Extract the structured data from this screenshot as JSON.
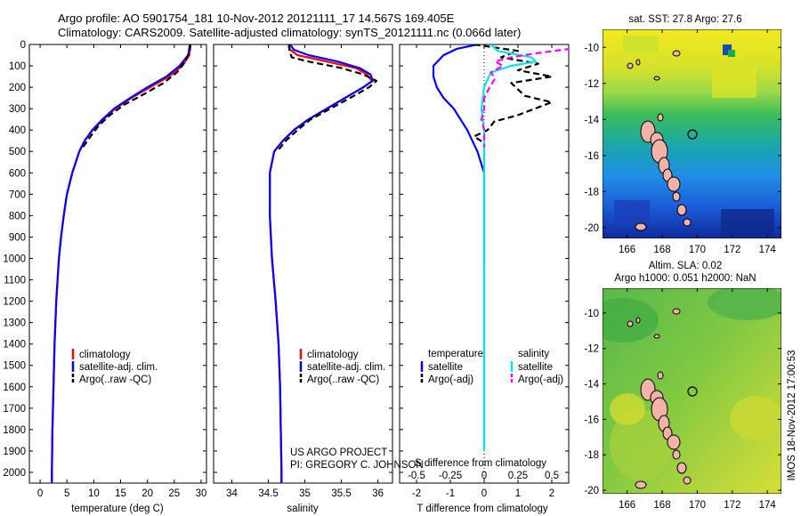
{
  "header": {
    "line1": "Argo profile: AO 5901754_181 10-Nov-2012 20121111_17 14.567S 169.405E",
    "line2": "Climatology: CARS2009. Satellite-adjusted climatology: synTS_20121111.nc (0.066d later)"
  },
  "colors": {
    "climatology": "#ff0000",
    "satellite": "#0000ff",
    "argo": "#000000",
    "sal_satellite": "#00e5e5",
    "sal_argo": "#ff00ff"
  },
  "project": {
    "line1": "US ARGO PROJECT",
    "line2": "PI: GREGORY C. JOHNSON"
  },
  "depth_ticks": [
    "0",
    "100",
    "200",
    "300",
    "400",
    "500",
    "600",
    "700",
    "800",
    "900",
    "1000",
    "1100",
    "1200",
    "1300",
    "1400",
    "1500",
    "1600",
    "1700",
    "1800",
    "1900",
    "2000"
  ],
  "legend_clim": {
    "climatology": "climatology",
    "satellite": "satellite-adj. clim.",
    "argo": "Argo(..raw -QC)"
  },
  "legend_diff": {
    "temp_header": "temperature",
    "sal_header": "salinity",
    "t_satellite": "satellite",
    "t_argo": "Argo(-adj)",
    "s_satellite": "satellite",
    "s_argo": "Argo(-adj)"
  },
  "map1": {
    "title": "sat. SST: 27.8 Argo: 27.6",
    "xticks": [
      "166",
      "168",
      "170",
      "172",
      "174"
    ],
    "yticks": [
      "-10",
      "-12",
      "-14",
      "-16",
      "-18",
      "-20"
    ]
  },
  "map2": {
    "title1": "Altim. SLA: 0.02",
    "title2": "Argo h1000: 0.051 h2000: NaN",
    "xticks": [
      "166",
      "168",
      "170",
      "172",
      "174"
    ],
    "yticks": [
      "-10",
      "-12",
      "-14",
      "-16",
      "-18",
      "-20"
    ]
  },
  "side_label": "IMOS 18-Nov-2012 17:00:53",
  "chart_data": [
    {
      "type": "line",
      "xlabel": "temperature (deg C)",
      "ylabel": "",
      "xlim": [
        -2,
        31
      ],
      "ylim": [
        2050,
        0
      ],
      "xticks": [
        "0",
        "5",
        "10",
        "15",
        "20",
        "25",
        "30"
      ],
      "series": [
        {
          "name": "climatology",
          "depth": [
            0,
            50,
            100,
            150,
            200,
            250,
            300,
            350,
            400,
            450,
            500,
            600,
            700,
            800,
            900,
            1000,
            1200,
            1400,
            1600,
            1800,
            2000,
            2050
          ],
          "values": [
            28.0,
            27.8,
            26.5,
            24.0,
            20.5,
            17.0,
            14.0,
            11.8,
            9.8,
            8.3,
            7.3,
            6.0,
            5.0,
            4.4,
            3.9,
            3.5,
            3.0,
            2.7,
            2.5,
            2.3,
            2.2,
            2.2
          ]
        },
        {
          "name": "satellite-adj. clim.",
          "depth": [
            0,
            50,
            100,
            150,
            200,
            250,
            300,
            350,
            400,
            450,
            500,
            600,
            700,
            800,
            900,
            1000,
            1200,
            1400,
            1600,
            1800,
            2000,
            2050
          ],
          "values": [
            27.9,
            27.6,
            26.0,
            23.5,
            20.0,
            16.8,
            13.8,
            11.6,
            9.7,
            8.3,
            7.3,
            6.0,
            5.0,
            4.4,
            3.9,
            3.5,
            3.0,
            2.7,
            2.5,
            2.3,
            2.2,
            2.2
          ]
        },
        {
          "name": "Argo(..raw -QC)",
          "depth": [
            0,
            30,
            80,
            130,
            180,
            230,
            280,
            330,
            380,
            430,
            480
          ],
          "values": [
            28.0,
            27.9,
            27.0,
            25.5,
            23.0,
            19.5,
            15.8,
            13.0,
            10.9,
            9.4,
            8.0
          ]
        }
      ]
    },
    {
      "type": "line",
      "xlabel": "salinity",
      "ylabel": "",
      "xlim": [
        33.75,
        36.2
      ],
      "ylim": [
        2050,
        0
      ],
      "xticks": [
        "34",
        "34.5",
        "35",
        "35.5",
        "36"
      ],
      "series": [
        {
          "name": "climatology",
          "depth": [
            0,
            25,
            50,
            80,
            110,
            140,
            170,
            200,
            250,
            300,
            350,
            400,
            450,
            500,
            600,
            800,
            1000,
            1200,
            1400,
            1600,
            1800,
            2000,
            2050
          ],
          "values": [
            34.78,
            34.8,
            34.9,
            35.3,
            35.7,
            35.85,
            35.92,
            35.8,
            35.55,
            35.3,
            35.05,
            34.85,
            34.7,
            34.58,
            34.52,
            34.52,
            34.55,
            34.6,
            34.64,
            34.66,
            34.67,
            34.68,
            34.68
          ]
        },
        {
          "name": "satellite-adj. clim.",
          "depth": [
            0,
            25,
            50,
            80,
            110,
            140,
            170,
            200,
            250,
            300,
            350,
            400,
            450,
            500,
            600,
            800,
            1000,
            1200,
            1400,
            1600,
            1800,
            2000,
            2050
          ],
          "values": [
            34.8,
            34.85,
            35.05,
            35.45,
            35.75,
            35.9,
            35.93,
            35.8,
            35.55,
            35.3,
            35.05,
            34.85,
            34.7,
            34.58,
            34.52,
            34.52,
            34.55,
            34.6,
            34.64,
            34.66,
            34.67,
            34.68,
            34.68
          ]
        },
        {
          "name": "Argo(..raw -QC)",
          "depth": [
            0,
            30,
            60,
            80,
            110,
            140,
            170,
            200,
            250,
            300,
            350,
            400,
            450,
            500
          ],
          "values": [
            34.78,
            34.79,
            34.82,
            35.05,
            35.5,
            35.8,
            35.98,
            35.88,
            35.62,
            35.35,
            35.08,
            34.9,
            34.74,
            34.62
          ]
        }
      ]
    },
    {
      "type": "line",
      "xlabel": "T difference from climatology",
      "subxlabel": "S difference from climatology",
      "ylabel": "",
      "xlim": [
        -2.5,
        2.5
      ],
      "ylim": [
        2050,
        0
      ],
      "xticks": [
        "-2",
        "-1",
        "0",
        "1",
        "2"
      ],
      "sticks": [
        "-0.5",
        "-0.25",
        "0",
        "0.25",
        "0.5"
      ],
      "series": [
        {
          "name": "temperature satellite",
          "depth": [
            0,
            20,
            50,
            100,
            150,
            200,
            250,
            300,
            400,
            500,
            600,
            800,
            1000,
            1050
          ],
          "values": [
            -0.2,
            -0.8,
            -1.2,
            -1.5,
            -1.5,
            -1.4,
            -1.2,
            -0.9,
            -0.5,
            -0.2,
            0.0,
            0.0,
            0.0,
            0.0
          ]
        },
        {
          "name": "temperature Argo(-adj)",
          "depth": [
            0,
            30,
            60,
            90,
            120,
            150,
            180,
            210,
            240,
            270,
            300,
            330,
            360,
            400,
            430,
            460,
            490
          ],
          "values": [
            -0.3,
            1.0,
            0.5,
            1.6,
            1.0,
            2.0,
            0.8,
            1.0,
            1.2,
            2.0,
            1.5,
            1.0,
            0.3,
            0.1,
            -0.3,
            0.0,
            0.0
          ]
        },
        {
          "name": "salinity satellite",
          "depth": [
            0,
            30,
            60,
            80,
            100,
            130,
            200,
            300,
            400,
            500,
            600,
            800,
            1000,
            1400,
            1800,
            1900
          ],
          "values": [
            0.05,
            0.1,
            0.35,
            0.38,
            0.2,
            0.05,
            0.0,
            -0.02,
            0.0,
            0.0,
            0.0,
            0.0,
            0.0,
            0.0,
            0.0,
            0.0
          ]
        },
        {
          "name": "salinity Argo(-adj)",
          "depth": [
            20,
            40,
            60,
            80,
            100,
            130,
            160,
            200,
            250,
            300,
            350,
            400,
            450,
            480
          ],
          "values": [
            0.64,
            0.4,
            0.2,
            0.08,
            0.14,
            0.05,
            0.08,
            0.04,
            0.0,
            0.0,
            -0.02,
            0.0,
            0.0,
            0.0
          ]
        }
      ]
    }
  ]
}
